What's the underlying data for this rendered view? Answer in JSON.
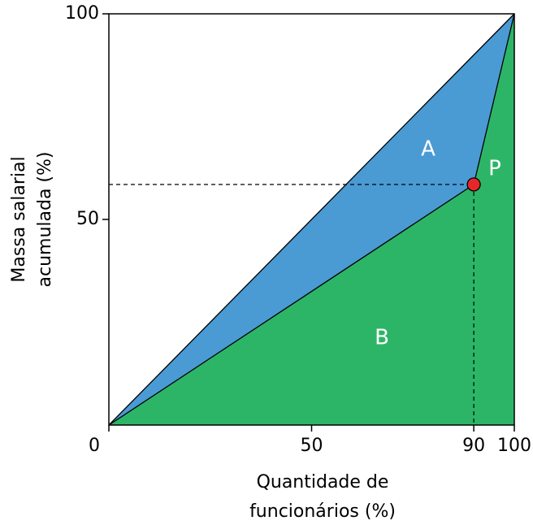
{
  "chart_data": {
    "type": "lorenz",
    "x": [
      0,
      90,
      100
    ],
    "values": [
      0,
      58.5,
      100
    ],
    "xlim": [
      0,
      100
    ],
    "ylim": [
      0,
      100
    ],
    "xticks": [
      0,
      50,
      90,
      100
    ],
    "yticks": [
      50,
      100
    ],
    "xlabel": [
      "Quantidade de",
      "funcionários (%)"
    ],
    "ylabel": [
      "Massa salarial",
      "acumulada (%)"
    ],
    "annotations": [
      "A",
      "B",
      "P"
    ],
    "colors": {
      "inequality": "#4a9ad4",
      "under": "#2db567",
      "point": "#e8262a"
    }
  }
}
